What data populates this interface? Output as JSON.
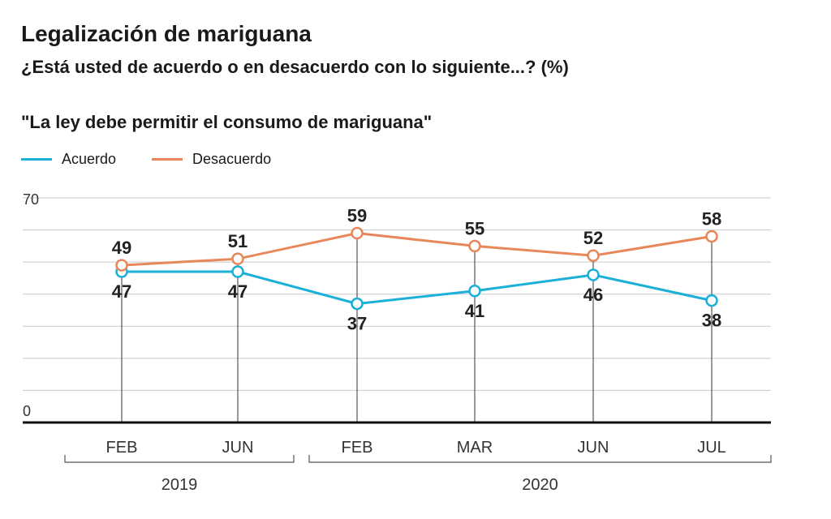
{
  "header": {
    "title": "Legalización de mariguana",
    "subtitle": "¿Está usted de acuerdo o en desacuerdo con lo siguiente...? (%)"
  },
  "chart_data": {
    "type": "line",
    "title": "\"La ley debe permitir el consumo de mariguana\"",
    "categories": [
      "FEB",
      "JUN",
      "FEB",
      "MAR",
      "JUN",
      "JUL"
    ],
    "groups": [
      {
        "label": "2019",
        "start": 0,
        "end": 1
      },
      {
        "label": "2020",
        "start": 2,
        "end": 5
      }
    ],
    "ylim": [
      0,
      70
    ],
    "yticks": [
      0,
      70
    ],
    "grid": true,
    "legend_position": "top-left",
    "series": [
      {
        "name": "Acuerdo",
        "color": "#1ab0d8",
        "values": [
          47,
          47,
          37,
          41,
          46,
          38
        ]
      },
      {
        "name": "Desacuerdo",
        "color": "#e8885a",
        "values": [
          49,
          51,
          59,
          55,
          52,
          58
        ]
      }
    ]
  }
}
